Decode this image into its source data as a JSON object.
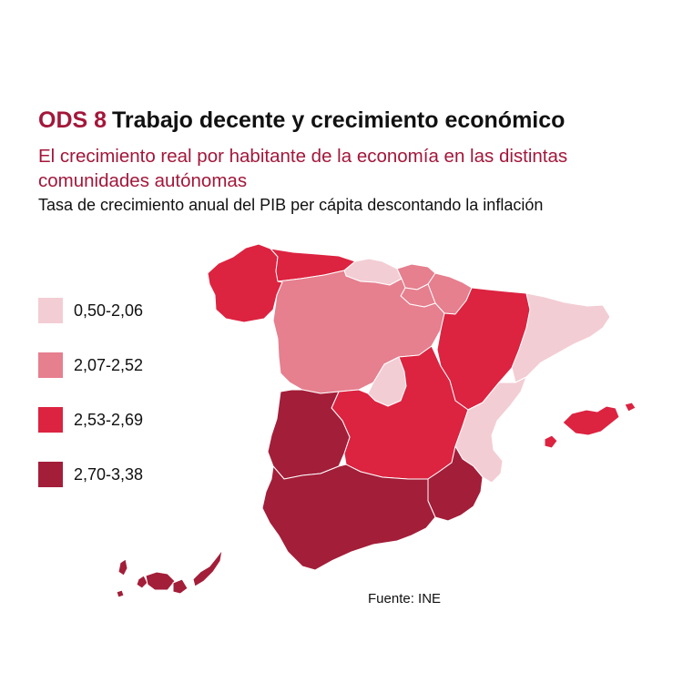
{
  "header": {
    "ods_label": "ODS 8",
    "title": "Trabajo decente y crecimiento económico",
    "subtitle": "El crecimiento real por habitante de la economía en las distintas comunidades autónomas",
    "caption": "Tasa de crecimiento anual del PIB per cápita descontando la inflación"
  },
  "legend": [
    {
      "label": "0,50-2,06",
      "color": "#f3cdd4"
    },
    {
      "label": "2,07-2,52",
      "color": "#e67f8e"
    },
    {
      "label": "2,53-2,69",
      "color": "#dc2340"
    },
    {
      "label": "2,70-3,38",
      "color": "#a31e39"
    }
  ],
  "regions": [
    {
      "name": "Galicia",
      "class": 2
    },
    {
      "name": "Asturias",
      "class": 2
    },
    {
      "name": "Cantabria",
      "class": 0
    },
    {
      "name": "País Vasco",
      "class": 1
    },
    {
      "name": "Navarra",
      "class": 1
    },
    {
      "name": "La Rioja",
      "class": 1
    },
    {
      "name": "Castilla y León",
      "class": 1
    },
    {
      "name": "Aragón",
      "class": 2
    },
    {
      "name": "Cataluña",
      "class": 0
    },
    {
      "name": "Madrid",
      "class": 0
    },
    {
      "name": "Castilla-La Mancha",
      "class": 2
    },
    {
      "name": "Extremadura",
      "class": 3
    },
    {
      "name": "Comunitat Valenciana",
      "class": 0
    },
    {
      "name": "Murcia",
      "class": 3
    },
    {
      "name": "Andalucía",
      "class": 3
    },
    {
      "name": "Illes Balears",
      "class": 2
    },
    {
      "name": "Canarias",
      "class": 3
    }
  ],
  "source": "Fuente: INE"
}
